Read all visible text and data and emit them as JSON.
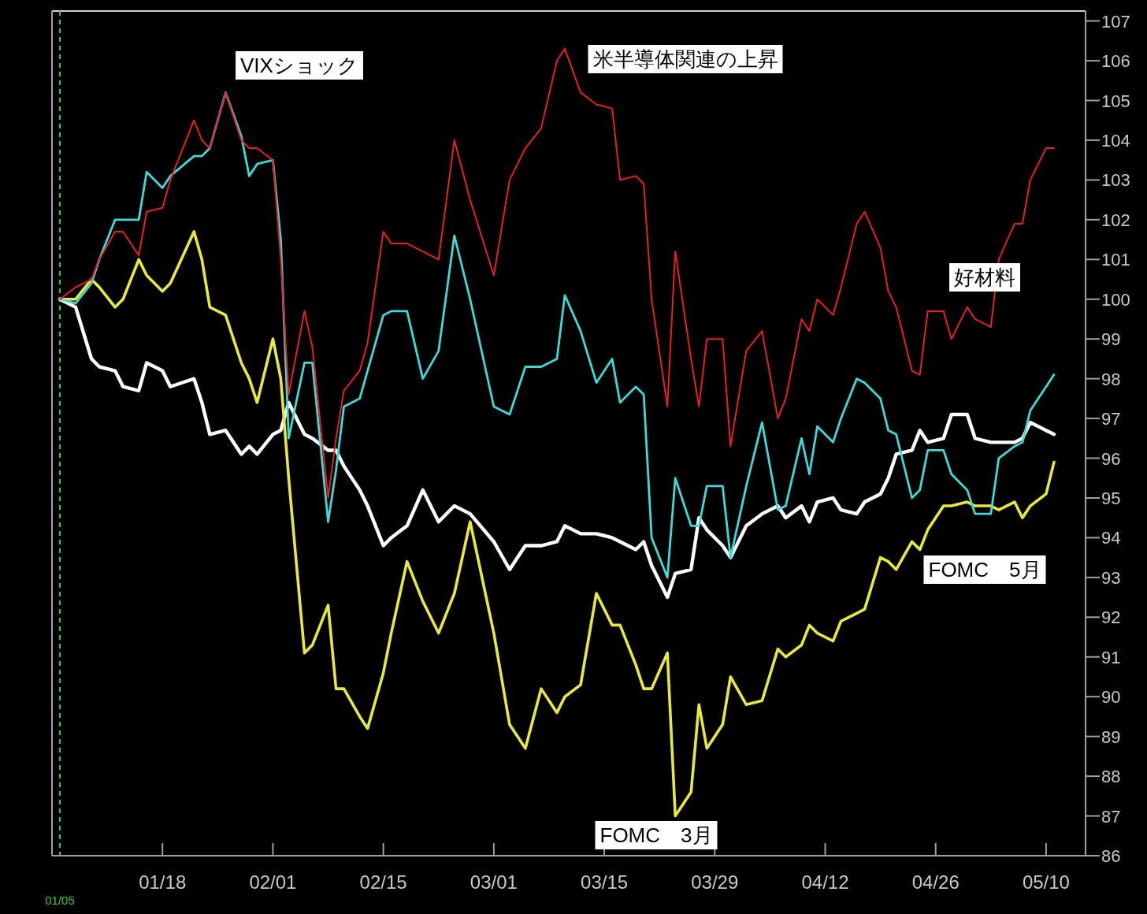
{
  "chart_data": {
    "type": "line",
    "x": [
      "--01-05",
      "--01-07",
      "--01-09",
      "--01-10",
      "--01-12",
      "--01-13",
      "--01-15",
      "--01-16",
      "--01-18",
      "--01-19",
      "--01-22",
      "--01-23",
      "--01-24",
      "--01-26",
      "--01-28",
      "--01-29",
      "--01-30",
      "--02-01",
      "--02-02",
      "--02-03",
      "--02-05",
      "--02-06",
      "--02-08",
      "--02-09",
      "--02-10",
      "--02-12",
      "--02-13",
      "--02-15",
      "--02-16",
      "--02-18",
      "--02-20",
      "--02-22",
      "--02-24",
      "--02-26",
      "--03-01",
      "--03-03",
      "--03-05",
      "--03-07",
      "--03-09",
      "--03-10",
      "--03-12",
      "--03-14",
      "--03-16",
      "--03-17",
      "--03-19",
      "--03-20",
      "--03-21",
      "--03-23",
      "--03-24",
      "--03-26",
      "--03-27",
      "--03-28",
      "--03-30",
      "--03-31",
      "--04-02",
      "--04-04",
      "--04-06",
      "--04-07",
      "--04-09",
      "--04-10",
      "--04-11",
      "--04-13",
      "--04-14",
      "--04-16",
      "--04-17",
      "--04-19",
      "--04-20",
      "--04-21",
      "--04-23",
      "--04-24",
      "--04-25",
      "--04-27",
      "--04-28",
      "--04-30",
      "--05-01",
      "--05-03",
      "--05-04",
      "--05-06",
      "--05-07",
      "--05-08",
      "--05-10",
      "--05-11"
    ],
    "series": [
      {
        "color": "#ffffff",
        "values": [
          100,
          99.8,
          98.5,
          98.3,
          98.2,
          97.8,
          97.7,
          98.4,
          98.2,
          97.8,
          98,
          97.4,
          96.6,
          96.7,
          96.1,
          96.3,
          96.1,
          96.6,
          96.7,
          97.4,
          96.6,
          96.5,
          96.2,
          96.2,
          95.8,
          95.2,
          94.8,
          93.8,
          94,
          94.3,
          95.2,
          94.4,
          94.8,
          94.6,
          93.9,
          93.2,
          93.8,
          93.8,
          93.9,
          94.3,
          94.1,
          94.1,
          94,
          93.9,
          93.7,
          93.9,
          93.3,
          92.5,
          93.1,
          93.2,
          94.5,
          94.2,
          93.8,
          93.5,
          94.3,
          94.6,
          94.8,
          94.5,
          94.8,
          94.4,
          94.9,
          95,
          94.7,
          94.6,
          94.9,
          95.1,
          95.5,
          96.1,
          96.2,
          96.7,
          96.4,
          96.5,
          97.1,
          97.1,
          96.5,
          96.4,
          96.4,
          96.4,
          96.5,
          96.9,
          96.7,
          96.6
        ]
      },
      {
        "color": "#e8e840",
        "values": [
          100,
          100,
          100.5,
          100.3,
          99.8,
          100,
          101,
          100.6,
          100.2,
          100.4,
          101.7,
          101,
          99.8,
          99.6,
          98.4,
          98,
          97.4,
          99,
          98,
          95.5,
          91.1,
          91.3,
          92.3,
          90.2,
          90.2,
          89.5,
          89.2,
          90.6,
          91.6,
          93.4,
          92.4,
          91.6,
          92.6,
          94.4,
          91.6,
          89.3,
          88.7,
          90.2,
          89.6,
          90,
          90.3,
          92.6,
          91.8,
          91.8,
          90.8,
          90.2,
          90.2,
          91.1,
          87,
          87.6,
          89.8,
          88.7,
          89.3,
          90.5,
          89.8,
          89.9,
          91.2,
          91,
          91.3,
          91.8,
          91.6,
          91.4,
          91.9,
          92.1,
          92.2,
          93.5,
          93.4,
          93.2,
          93.9,
          93.7,
          94.2,
          94.8,
          94.8,
          94.9,
          94.8,
          94.8,
          94.7,
          94.9,
          94.5,
          94.8,
          95.1,
          95.9
        ]
      },
      {
        "color": "#40d8d8",
        "values": [
          100,
          99.9,
          100.4,
          101,
          102,
          102,
          102,
          103.2,
          102.8,
          103.1,
          103.6,
          103.6,
          103.8,
          105.2,
          104.1,
          103.1,
          103.4,
          103.5,
          101.5,
          96.5,
          98.4,
          98.4,
          94.4,
          95.7,
          97.3,
          97.5,
          98.2,
          99.6,
          99.7,
          99.7,
          98,
          98.7,
          101.6,
          100,
          97.3,
          97.1,
          98.3,
          98.3,
          98.5,
          100.1,
          99.2,
          97.9,
          98.5,
          97.4,
          97.8,
          97.6,
          94,
          93,
          95.5,
          94.3,
          94.3,
          95.3,
          95.3,
          93.5,
          95.3,
          96.9,
          94.7,
          94.8,
          96.5,
          95.6,
          96.8,
          96.4,
          97,
          98,
          97.9,
          97.5,
          96.7,
          96.6,
          95,
          95.2,
          96.2,
          96.2,
          95.6,
          95.2,
          94.6,
          94.6,
          96,
          96.3,
          96.4,
          97.2,
          97.8,
          98.1
        ]
      },
      {
        "color": "#e82020",
        "values": [
          100,
          100.3,
          100.5,
          101,
          101.7,
          101.7,
          101.1,
          102.2,
          102.3,
          103,
          104.5,
          104,
          103.8,
          105.2,
          104,
          103.8,
          103.8,
          103.5,
          101,
          97.6,
          99.7,
          98.8,
          95,
          96.5,
          97.7,
          98.2,
          98.9,
          101.7,
          101.4,
          101.4,
          101.2,
          101,
          104,
          102.5,
          100.6,
          103,
          103.8,
          104.3,
          106,
          106.3,
          105.2,
          104.9,
          104.8,
          103,
          103.1,
          102.9,
          100,
          97.3,
          101.2,
          98.5,
          97.3,
          99,
          99,
          96.3,
          98.7,
          99.2,
          97,
          97.5,
          99.5,
          99.2,
          100,
          99.6,
          100.3,
          101.9,
          102.2,
          101.3,
          100.2,
          99.8,
          98.2,
          98.1,
          99.7,
          99.7,
          99,
          99.8,
          99.5,
          99.3,
          101,
          101.9,
          101.9,
          103,
          103.8,
          103.8
        ]
      }
    ],
    "xlim": [
      "--01-04",
      "--05-15"
    ],
    "ylim": [
      86,
      107.25
    ],
    "xticks": [
      {
        "value": "--01-18",
        "label": "01/18"
      },
      {
        "value": "--02-01",
        "label": "02/01"
      },
      {
        "value": "--02-15",
        "label": "02/15"
      },
      {
        "value": "--03-01",
        "label": "03/01"
      },
      {
        "value": "--03-15",
        "label": "03/15"
      },
      {
        "value": "--03-29",
        "label": "03/29"
      },
      {
        "value": "--04-12",
        "label": "04/12"
      },
      {
        "value": "--04-26",
        "label": "04/26"
      },
      {
        "value": "--05-10",
        "label": "05/10"
      }
    ],
    "yticks": [
      86,
      87,
      88,
      89,
      90,
      91,
      92,
      93,
      94,
      95,
      96,
      97,
      98,
      99,
      100,
      101,
      102,
      103,
      104,
      105,
      106,
      107
    ],
    "ref_lines": [
      {
        "axis": "x",
        "value": "--01-05",
        "label": "01/05",
        "color": "#33cc33",
        "line_style": "dashed"
      }
    ],
    "annotations": [
      "VIXショック",
      "米半導体関連の上昇",
      "好材料",
      "FOMC　5月",
      "FOMC　3月"
    ]
  }
}
